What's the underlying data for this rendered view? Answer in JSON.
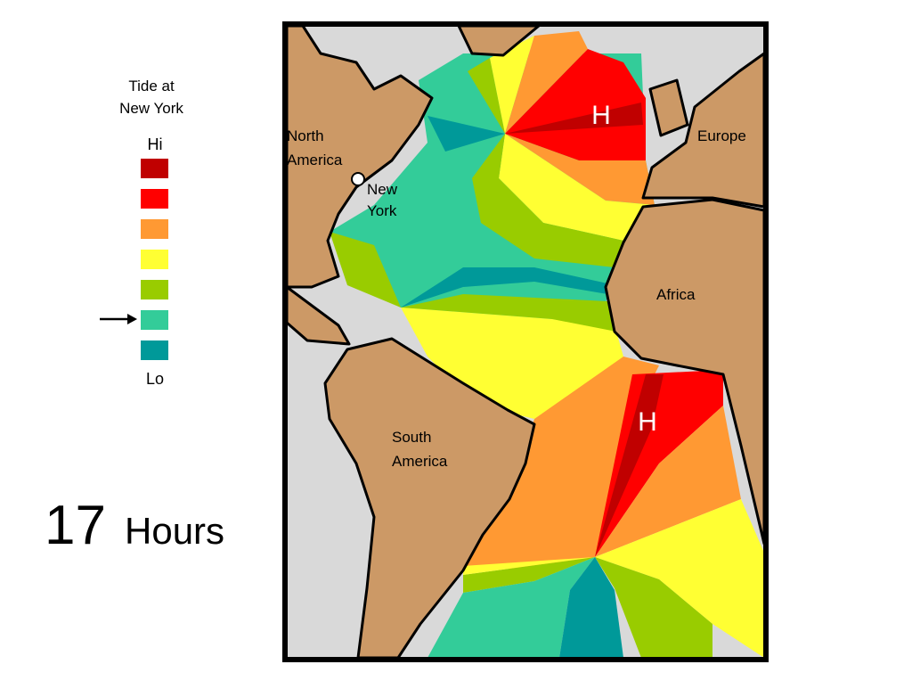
{
  "legend": {
    "title": [
      "Tide at",
      "New York"
    ],
    "high_label": "Hi",
    "low_label": "Lo",
    "colors": [
      "#c00000",
      "#ff0000",
      "#ff9933",
      "#ffff33",
      "#99cc00",
      "#33cc99",
      "#009999"
    ]
  },
  "map": {
    "labels": [
      {
        "name": "north-america",
        "lines": [
          "North",
          "America"
        ]
      },
      {
        "name": "new-york",
        "lines": [
          "New",
          "York"
        ]
      },
      {
        "name": "europe",
        "lines": [
          "Europe"
        ]
      },
      {
        "name": "africa",
        "lines": [
          "Africa"
        ]
      },
      {
        "name": "south-america",
        "lines": [
          "South",
          "America"
        ]
      }
    ],
    "high_markers": [
      "H",
      "H"
    ]
  },
  "caption": {
    "number": "17",
    "unit": "Hours"
  }
}
